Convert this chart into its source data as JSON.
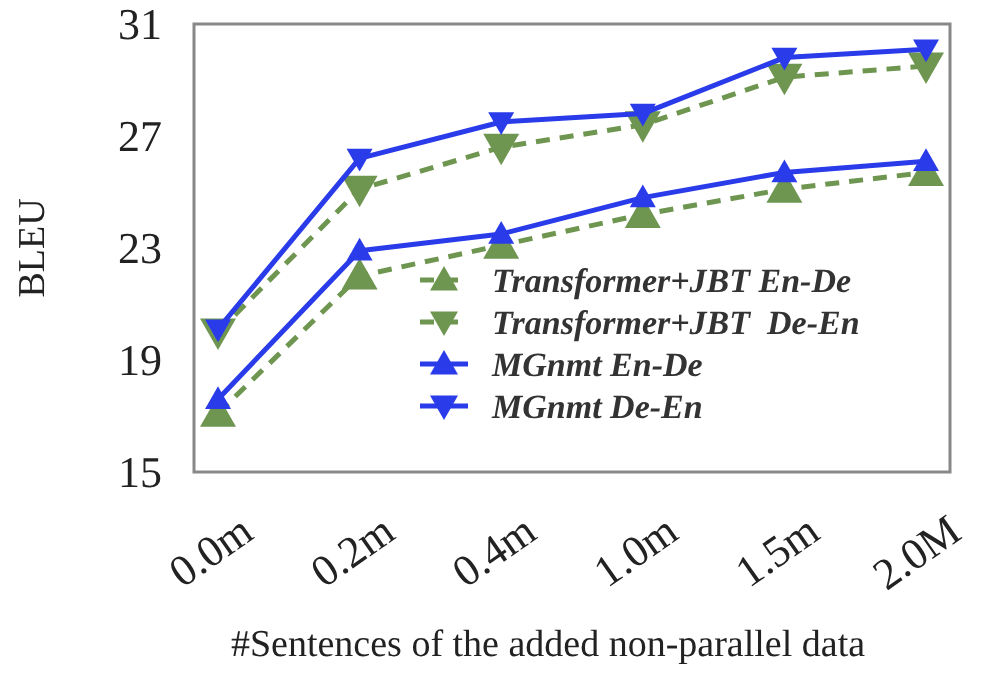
{
  "chart_data": {
    "type": "line",
    "xlabel": "#Sentences of the added non-parallel data",
    "ylabel": "BLEU",
    "categories": [
      "0.0m",
      "0.2m",
      "0.4m",
      "1.0m",
      "1.5m",
      "2.0M"
    ],
    "ylim": [
      15,
      31
    ],
    "yticks": [
      15,
      19,
      23,
      27,
      31
    ],
    "grid": false,
    "legend": "bottom right",
    "series": [
      {
        "name": "Transformer+JBT En-De",
        "color": "#6e9650",
        "line_style": "dashed",
        "marker": "triangle",
        "values": [
          17.1,
          22.0,
          23.1,
          24.2,
          25.1,
          25.7
        ]
      },
      {
        "name": "Transformer+JBT  De-En",
        "color": "#6e9650",
        "line_style": "dashed",
        "marker": "triangle-down",
        "values": [
          20.0,
          25.1,
          26.6,
          27.4,
          29.1,
          29.5
        ]
      },
      {
        "name": "MGnmt En-De",
        "color": "#2a3bea",
        "line_style": "solid",
        "marker": "triangle",
        "values": [
          17.6,
          22.9,
          23.5,
          24.8,
          25.7,
          26.1
        ]
      },
      {
        "name": "MGnmt De-En",
        "color": "#2a3bea",
        "line_style": "solid",
        "marker": "triangle-down",
        "values": [
          20.1,
          26.2,
          27.5,
          27.8,
          29.8,
          30.1
        ]
      }
    ]
  }
}
